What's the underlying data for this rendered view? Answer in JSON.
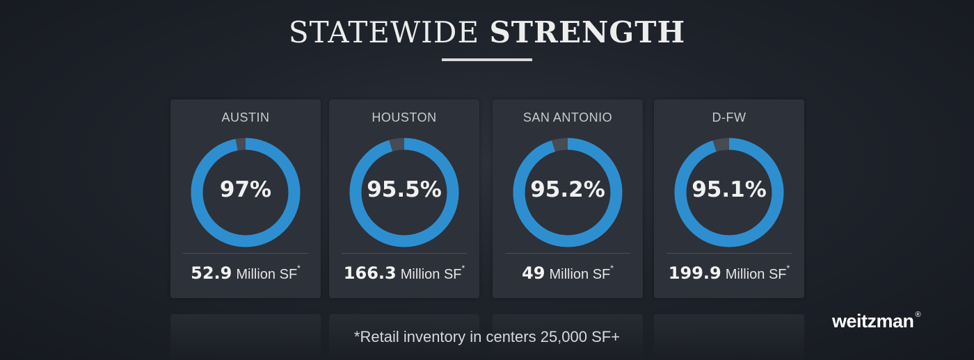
{
  "header": {
    "title_light": "STATEWIDE",
    "title_bold": "STRENGTH"
  },
  "chart_data": {
    "type": "donut",
    "title": "STATEWIDE STRENGTH",
    "categories": [
      "AUSTIN",
      "HOUSTON",
      "SAN ANTONIO",
      "D-FW"
    ],
    "values": [
      97,
      95.5,
      95.2,
      95.1
    ],
    "value_labels": [
      "97%",
      "95.5%",
      "95.2%",
      "95.1%"
    ],
    "inventory": [
      {
        "value": "52.9",
        "unit": "Million SF",
        "mark": "*"
      },
      {
        "value": "166.3",
        "unit": "Million SF",
        "mark": "*"
      },
      {
        "value": "49",
        "unit": "Million SF",
        "mark": "*"
      },
      {
        "value": "199.9",
        "unit": "Million SF",
        "mark": "*"
      }
    ],
    "colors": {
      "filled": "#2e8fd0",
      "remaining": "#474b53"
    }
  },
  "footnote": "*Retail inventory in centers 25,000 SF+",
  "brand": {
    "name": "weitzman",
    "mark": "®"
  }
}
